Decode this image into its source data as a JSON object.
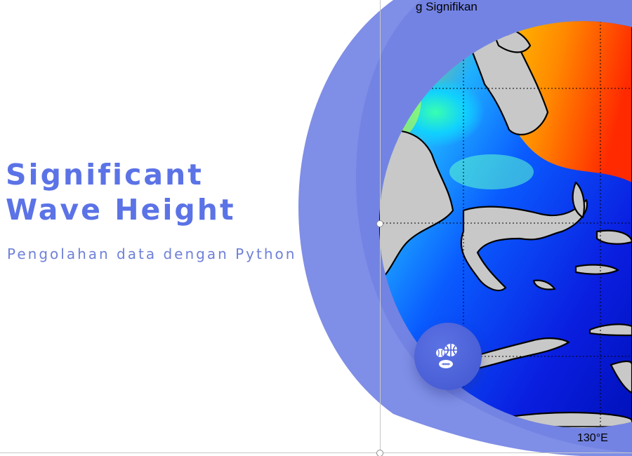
{
  "slide": {
    "title_line1": "Significant",
    "title_line2": "Wave Height",
    "subtitle": "Pengolahan data dengan Python"
  },
  "map": {
    "title_fragment": "g Signifikan",
    "tick_label": "130°E",
    "colormap": [
      "#0000c8",
      "#0a3cff",
      "#00c8ff",
      "#3cff96",
      "#ffee00",
      "#ff8800",
      "#ff2200"
    ],
    "land_color": "#c8c8c8"
  },
  "fab": {
    "icon": "sports-balls-icon"
  },
  "colors": {
    "accent": "#5b73e6",
    "crescent": "#7f8ee6",
    "crescent_inner": "#7383e3",
    "fab": "#4a5fd8"
  }
}
